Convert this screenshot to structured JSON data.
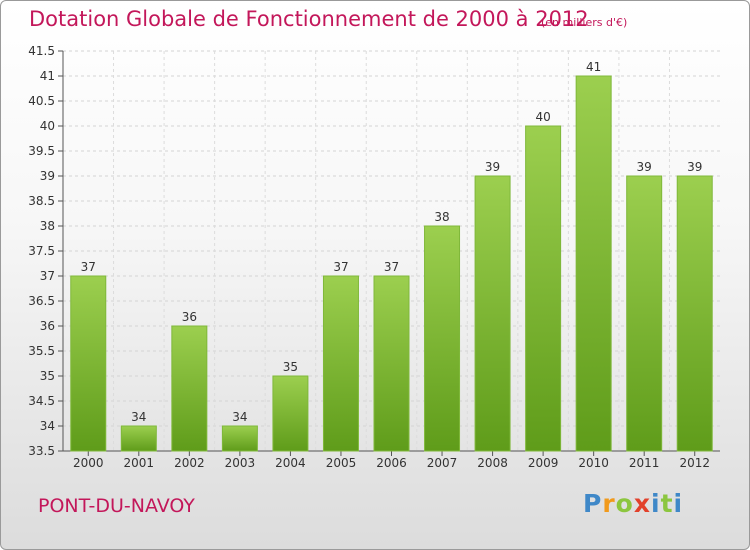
{
  "title": "Dotation Globale de Fonctionnement de 2000 à 2012",
  "subtitle": "(en milliers d'€)",
  "place": "PONT-DU-NAVOY",
  "logo": {
    "p": "P",
    "r": "r",
    "o": "o",
    "x": "x",
    "i1": "i",
    "t": "t",
    "i2": "i"
  },
  "colors": {
    "accent": "#c3175a",
    "bar_top": "#9ccf4f",
    "bar_bottom": "#5f9c1a"
  },
  "chart_data": {
    "type": "bar",
    "title": "Dotation Globale de Fonctionnement de 2000 à 2012",
    "subtitle": "(en milliers d'€)",
    "categories": [
      "2000",
      "2001",
      "2002",
      "2003",
      "2004",
      "2005",
      "2006",
      "2007",
      "2008",
      "2009",
      "2010",
      "2011",
      "2012"
    ],
    "values": [
      37,
      34,
      36,
      34,
      35,
      37,
      37,
      38,
      39,
      40,
      41,
      39,
      39
    ],
    "ylim": [
      33.5,
      41.5
    ],
    "yticks": [
      "33.5",
      "34",
      "34.5",
      "35",
      "35.5",
      "36",
      "36.5",
      "37",
      "37.5",
      "38",
      "38.5",
      "39",
      "39.5",
      "40",
      "40.5",
      "41",
      "41.5"
    ],
    "ytick_values": [
      33.5,
      34,
      34.5,
      35,
      35.5,
      36,
      36.5,
      37,
      37.5,
      38,
      38.5,
      39,
      39.5,
      40,
      40.5,
      41,
      41.5
    ],
    "grid": true,
    "legend": "none"
  }
}
